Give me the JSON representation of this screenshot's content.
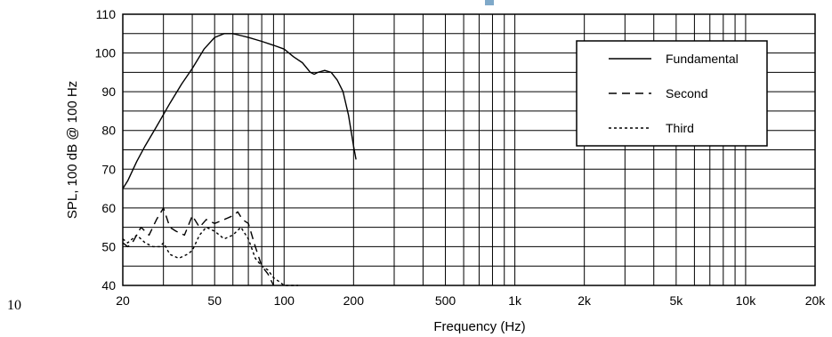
{
  "chart_data": {
    "type": "line",
    "xlabel": "Frequency (Hz)",
    "ylabel": "SPL, 100 dB @ 100 Hz",
    "x_scale": "log",
    "xlim": [
      20,
      20000
    ],
    "ylim": [
      40,
      110
    ],
    "grid": true,
    "legend_position": "top-right",
    "x_ticks": [
      {
        "value": 20,
        "label": "20"
      },
      {
        "value": 50,
        "label": "50"
      },
      {
        "value": 100,
        "label": "100"
      },
      {
        "value": 200,
        "label": "200"
      },
      {
        "value": 500,
        "label": "500"
      },
      {
        "value": 1000,
        "label": "1k"
      },
      {
        "value": 2000,
        "label": "2k"
      },
      {
        "value": 5000,
        "label": "5k"
      },
      {
        "value": 10000,
        "label": "10k"
      },
      {
        "value": 20000,
        "label": "20k"
      }
    ],
    "y_ticks": [
      40,
      50,
      60,
      70,
      80,
      90,
      100,
      110
    ],
    "stray_label": "10",
    "series": [
      {
        "name": "Fundamental",
        "style": "solid",
        "points": [
          [
            20,
            65
          ],
          [
            21,
            67
          ],
          [
            23,
            72
          ],
          [
            25,
            76
          ],
          [
            28,
            81
          ],
          [
            32,
            87
          ],
          [
            36,
            92
          ],
          [
            40,
            96
          ],
          [
            45,
            101
          ],
          [
            50,
            104
          ],
          [
            55,
            105
          ],
          [
            60,
            105
          ],
          [
            65,
            104.5
          ],
          [
            70,
            104
          ],
          [
            80,
            103
          ],
          [
            90,
            102
          ],
          [
            100,
            101
          ],
          [
            110,
            99
          ],
          [
            120,
            97.5
          ],
          [
            130,
            95
          ],
          [
            135,
            94.5
          ],
          [
            140,
            95
          ],
          [
            150,
            95.5
          ],
          [
            160,
            95
          ],
          [
            170,
            93
          ],
          [
            180,
            90
          ],
          [
            190,
            84
          ],
          [
            200,
            76
          ],
          [
            205,
            72.5
          ]
        ]
      },
      {
        "name": "Second",
        "style": "dashed",
        "points": [
          [
            20,
            51
          ],
          [
            21,
            50
          ],
          [
            22,
            51
          ],
          [
            24,
            55
          ],
          [
            26,
            53
          ],
          [
            28,
            57
          ],
          [
            30,
            60
          ],
          [
            32,
            55
          ],
          [
            34,
            54
          ],
          [
            37,
            53
          ],
          [
            40,
            58
          ],
          [
            43,
            55
          ],
          [
            46,
            57
          ],
          [
            50,
            56
          ],
          [
            55,
            57
          ],
          [
            60,
            58
          ],
          [
            63,
            59
          ],
          [
            66,
            57
          ],
          [
            70,
            56
          ],
          [
            75,
            50
          ],
          [
            80,
            45
          ],
          [
            85,
            43
          ],
          [
            90,
            40
          ]
        ]
      },
      {
        "name": "Third",
        "style": "dotted",
        "points": [
          [
            20,
            52
          ],
          [
            21,
            51
          ],
          [
            23,
            53
          ],
          [
            25,
            51
          ],
          [
            27,
            50
          ],
          [
            29,
            50
          ],
          [
            30,
            51
          ],
          [
            32,
            48
          ],
          [
            35,
            47
          ],
          [
            38,
            48
          ],
          [
            40,
            49
          ],
          [
            43,
            53
          ],
          [
            46,
            55
          ],
          [
            50,
            54
          ],
          [
            55,
            52
          ],
          [
            60,
            53
          ],
          [
            65,
            55
          ],
          [
            70,
            52
          ],
          [
            75,
            47
          ],
          [
            80,
            45
          ],
          [
            85,
            44
          ],
          [
            90,
            42
          ],
          [
            95,
            41
          ],
          [
            100,
            40
          ],
          [
            112,
            40
          ],
          [
            115,
            40
          ]
        ]
      }
    ]
  }
}
